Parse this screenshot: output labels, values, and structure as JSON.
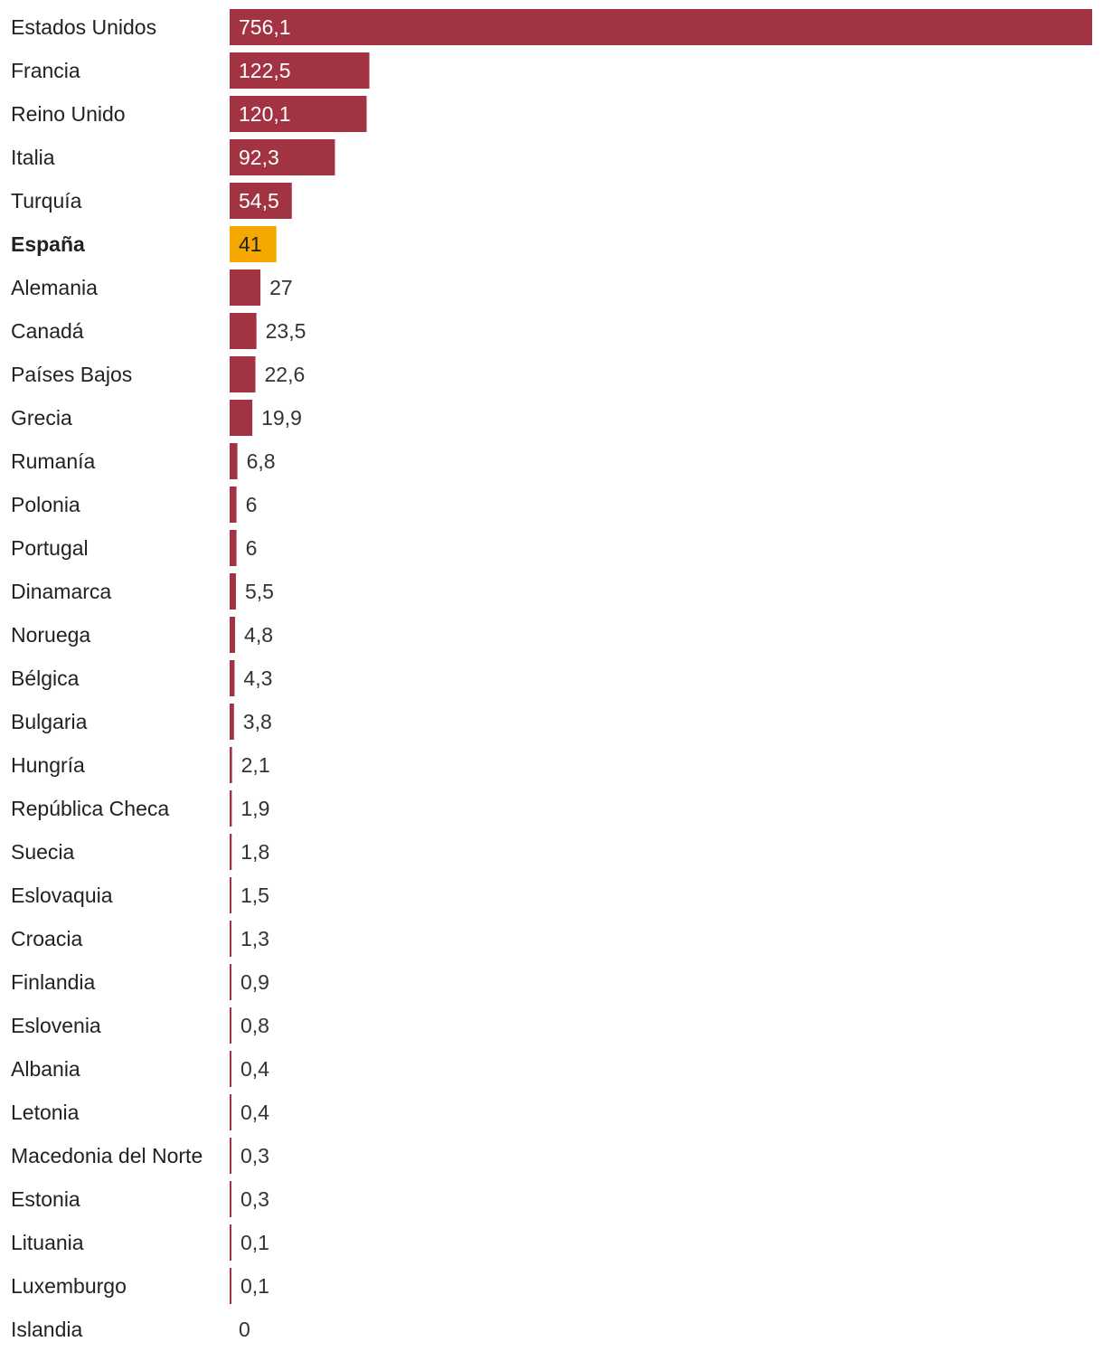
{
  "chart_data": {
    "type": "bar",
    "orientation": "horizontal",
    "title": "",
    "xlabel": "",
    "ylabel": "",
    "highlight_category": "España",
    "colors": {
      "default": "#a13342",
      "highlight": "#f5a800"
    },
    "categories": [
      "Estados Unidos",
      "Francia",
      "Reino Unido",
      "Italia",
      "Turquía",
      "España",
      "Alemania",
      "Canadá",
      "Países Bajos",
      "Grecia",
      "Rumanía",
      "Polonia",
      "Portugal",
      "Dinamarca",
      "Noruega",
      "Bélgica",
      "Bulgaria",
      "Hungría",
      "República Checa",
      "Suecia",
      "Eslovaquia",
      "Croacia",
      "Finlandia",
      "Eslovenia",
      "Albania",
      "Letonia",
      "Macedonia del Norte",
      "Estonia",
      "Lituania",
      "Luxemburgo",
      "Islandia"
    ],
    "values": [
      756.1,
      122.5,
      120.1,
      92.3,
      54.5,
      41,
      27,
      23.5,
      22.6,
      19.9,
      6.8,
      6,
      6,
      5.5,
      4.8,
      4.3,
      3.8,
      2.1,
      1.9,
      1.8,
      1.5,
      1.3,
      0.9,
      0.8,
      0.4,
      0.4,
      0.3,
      0.3,
      0.1,
      0.1,
      0
    ],
    "value_labels": [
      "756,1",
      "122,5",
      "120,1",
      "92,3",
      "54,5",
      "41",
      "27",
      "23,5",
      "22,6",
      "19,9",
      "6,8",
      "6",
      "6",
      "5,5",
      "4,8",
      "4,3",
      "3,8",
      "2,1",
      "1,9",
      "1,8",
      "1,5",
      "1,3",
      "0,9",
      "0,8",
      "0,4",
      "0,4",
      "0,3",
      "0,3",
      "0,1",
      "0,1",
      "0"
    ],
    "xlim": [
      0,
      756.1
    ],
    "grid": false,
    "legend": "none"
  }
}
